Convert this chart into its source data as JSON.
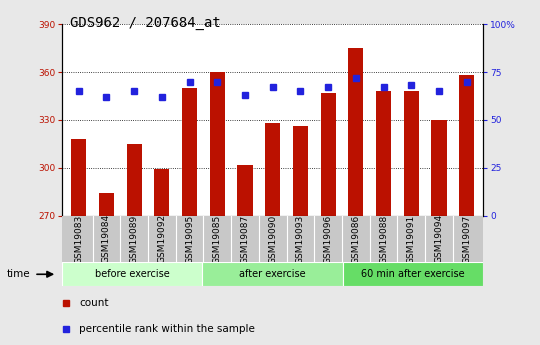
{
  "title": "GDS962 / 207684_at",
  "categories": [
    "GSM19083",
    "GSM19084",
    "GSM19089",
    "GSM19092",
    "GSM19095",
    "GSM19085",
    "GSM19087",
    "GSM19090",
    "GSM19093",
    "GSM19096",
    "GSM19086",
    "GSM19088",
    "GSM19091",
    "GSM19094",
    "GSM19097"
  ],
  "bar_values": [
    318,
    284,
    315,
    299,
    350,
    360,
    302,
    328,
    326,
    347,
    375,
    348,
    348,
    330,
    358
  ],
  "dot_values": [
    65,
    62,
    65,
    62,
    70,
    70,
    63,
    67,
    65,
    67,
    72,
    67,
    68,
    65,
    70
  ],
  "ylim_left": [
    270,
    390
  ],
  "ylim_right": [
    0,
    100
  ],
  "yticks_left": [
    270,
    300,
    330,
    360,
    390
  ],
  "yticks_right": [
    0,
    25,
    50,
    75,
    100
  ],
  "bar_color": "#bb1100",
  "dot_color": "#2222dd",
  "bg_color": "#e8e8e8",
  "plot_bg": "#ffffff",
  "xtick_bg": "#c8c8c8",
  "grid_color": "#000000",
  "groups": [
    {
      "label": "before exercise",
      "start": 0,
      "end": 5,
      "color": "#ccffcc"
    },
    {
      "label": "after exercise",
      "start": 5,
      "end": 10,
      "color": "#99ee99"
    },
    {
      "label": "60 min after exercise",
      "start": 10,
      "end": 15,
      "color": "#66dd66"
    }
  ],
  "legend_count_label": "count",
  "legend_pct_label": "percentile rank within the sample",
  "time_label": "time",
  "title_fontsize": 10,
  "tick_fontsize": 6.5,
  "label_fontsize": 8
}
